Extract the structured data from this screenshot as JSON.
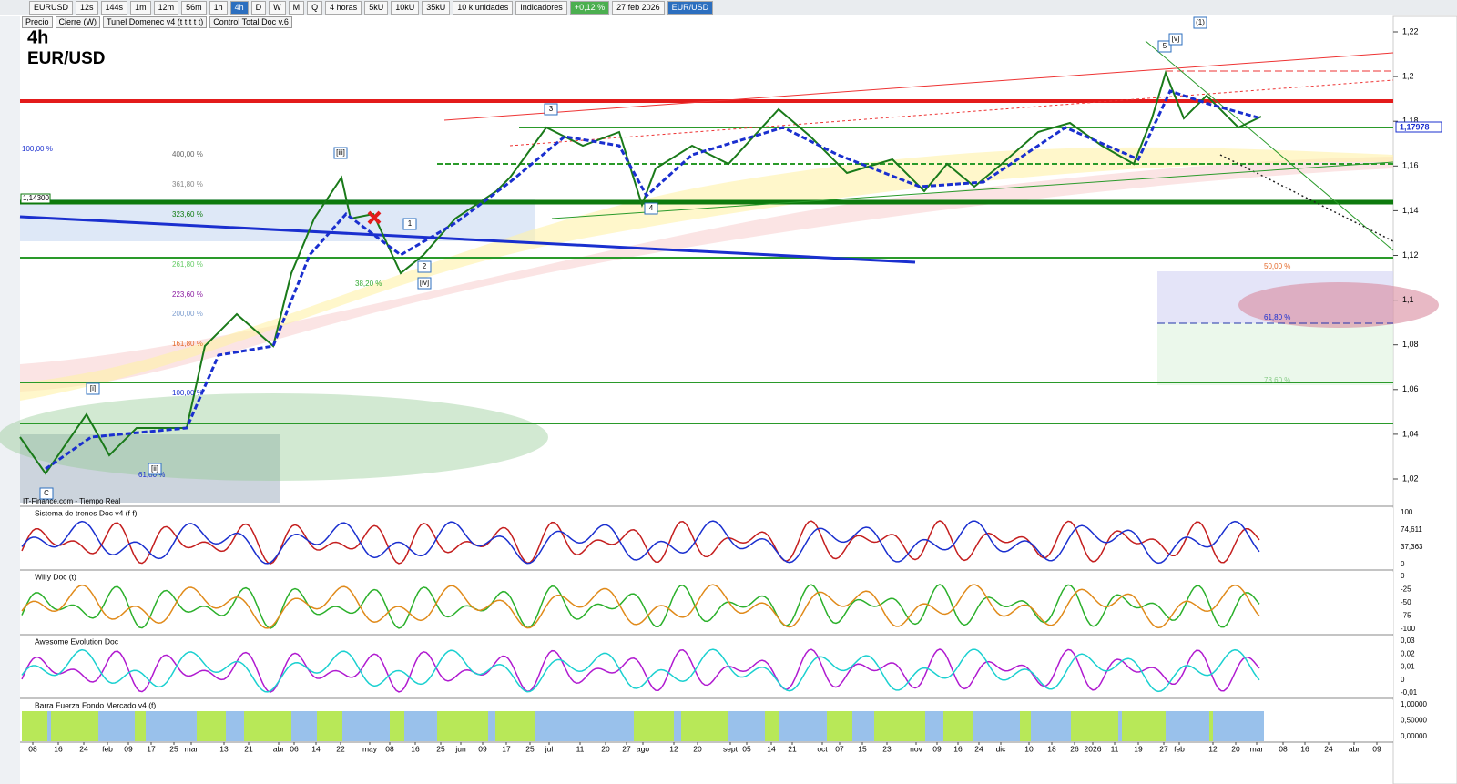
{
  "toolbar": {
    "items": [
      "EURUSD",
      "12s",
      "144s",
      "1m",
      "12m",
      "56m",
      "1h",
      "4h",
      "D",
      "W",
      "M",
      "Q",
      "4 horas",
      "5kU",
      "10kU",
      "35kU",
      "10 k unidades",
      "Indicadores",
      "+0,12 %",
      "27 feb 2026",
      "EUR/USD"
    ]
  },
  "legend": [
    "Precio",
    "Cierre (W)",
    "Tunel Domenec v4 (t t t t t)",
    "Control Total Doc v.6"
  ],
  "chart": {
    "timeframe": "4h",
    "symbol": "EUR/USD",
    "source": "IT-Finance.com - Tiempo Real",
    "price_axis": [
      "1,22",
      "1,2",
      "1,18",
      "1,16",
      "1,14",
      "1,12",
      "1,1",
      "1,08",
      "1,06",
      "1,04",
      "1,02"
    ],
    "current_price": "1,17978",
    "level": "1,14300",
    "fib_labels": [
      "100,00 %",
      "400,00 %",
      "361,80 %",
      "323,60 %",
      "261,80 %",
      "223,60 %",
      "200,00 %",
      "161,80 %",
      "100,00 %",
      "38,20 %",
      "61,80 %",
      "50,00 %",
      "61,80 %",
      "78,60 %"
    ],
    "wave_labels": [
      "3",
      "4",
      "5",
      "[v]",
      "(1)",
      "[iii]",
      "1",
      "2",
      "[iv]",
      "[i]",
      "[ii]",
      "C"
    ]
  },
  "panels": [
    {
      "name": "Sistema de trenes Doc v4 (f f)",
      "axis": [
        "100",
        "74,611",
        "37,363",
        "0"
      ]
    },
    {
      "name": "Willy Doc (t)",
      "axis": [
        "0",
        "-25",
        "-50",
        "-75",
        "-100"
      ]
    },
    {
      "name": "Awesome Evolution Doc",
      "axis": [
        "0,03",
        "0,02",
        "0,01",
        "0",
        "-0,01"
      ]
    },
    {
      "name": "Barra Fuerza Fondo Mercado v4 (f)",
      "axis": [
        "1,00000",
        "0,50000",
        "0,00000"
      ]
    }
  ],
  "date_axis": [
    "08",
    "16",
    "24",
    "feb",
    "09",
    "17",
    "25",
    "mar",
    "13",
    "21",
    "abr",
    "06",
    "14",
    "22",
    "may",
    "08",
    "16",
    "25",
    "jun",
    "09",
    "17",
    "25",
    "jul",
    "11",
    "20",
    "27",
    "ago",
    "12",
    "20",
    "sept",
    "05",
    "14",
    "21",
    "oct",
    "07",
    "15",
    "23",
    "nov",
    "09",
    "16",
    "24",
    "dic",
    "10",
    "18",
    "26",
    "2026",
    "11",
    "19",
    "27",
    "feb",
    "12",
    "20",
    "mar",
    "08",
    "16",
    "24",
    "abr",
    "09"
  ]
}
